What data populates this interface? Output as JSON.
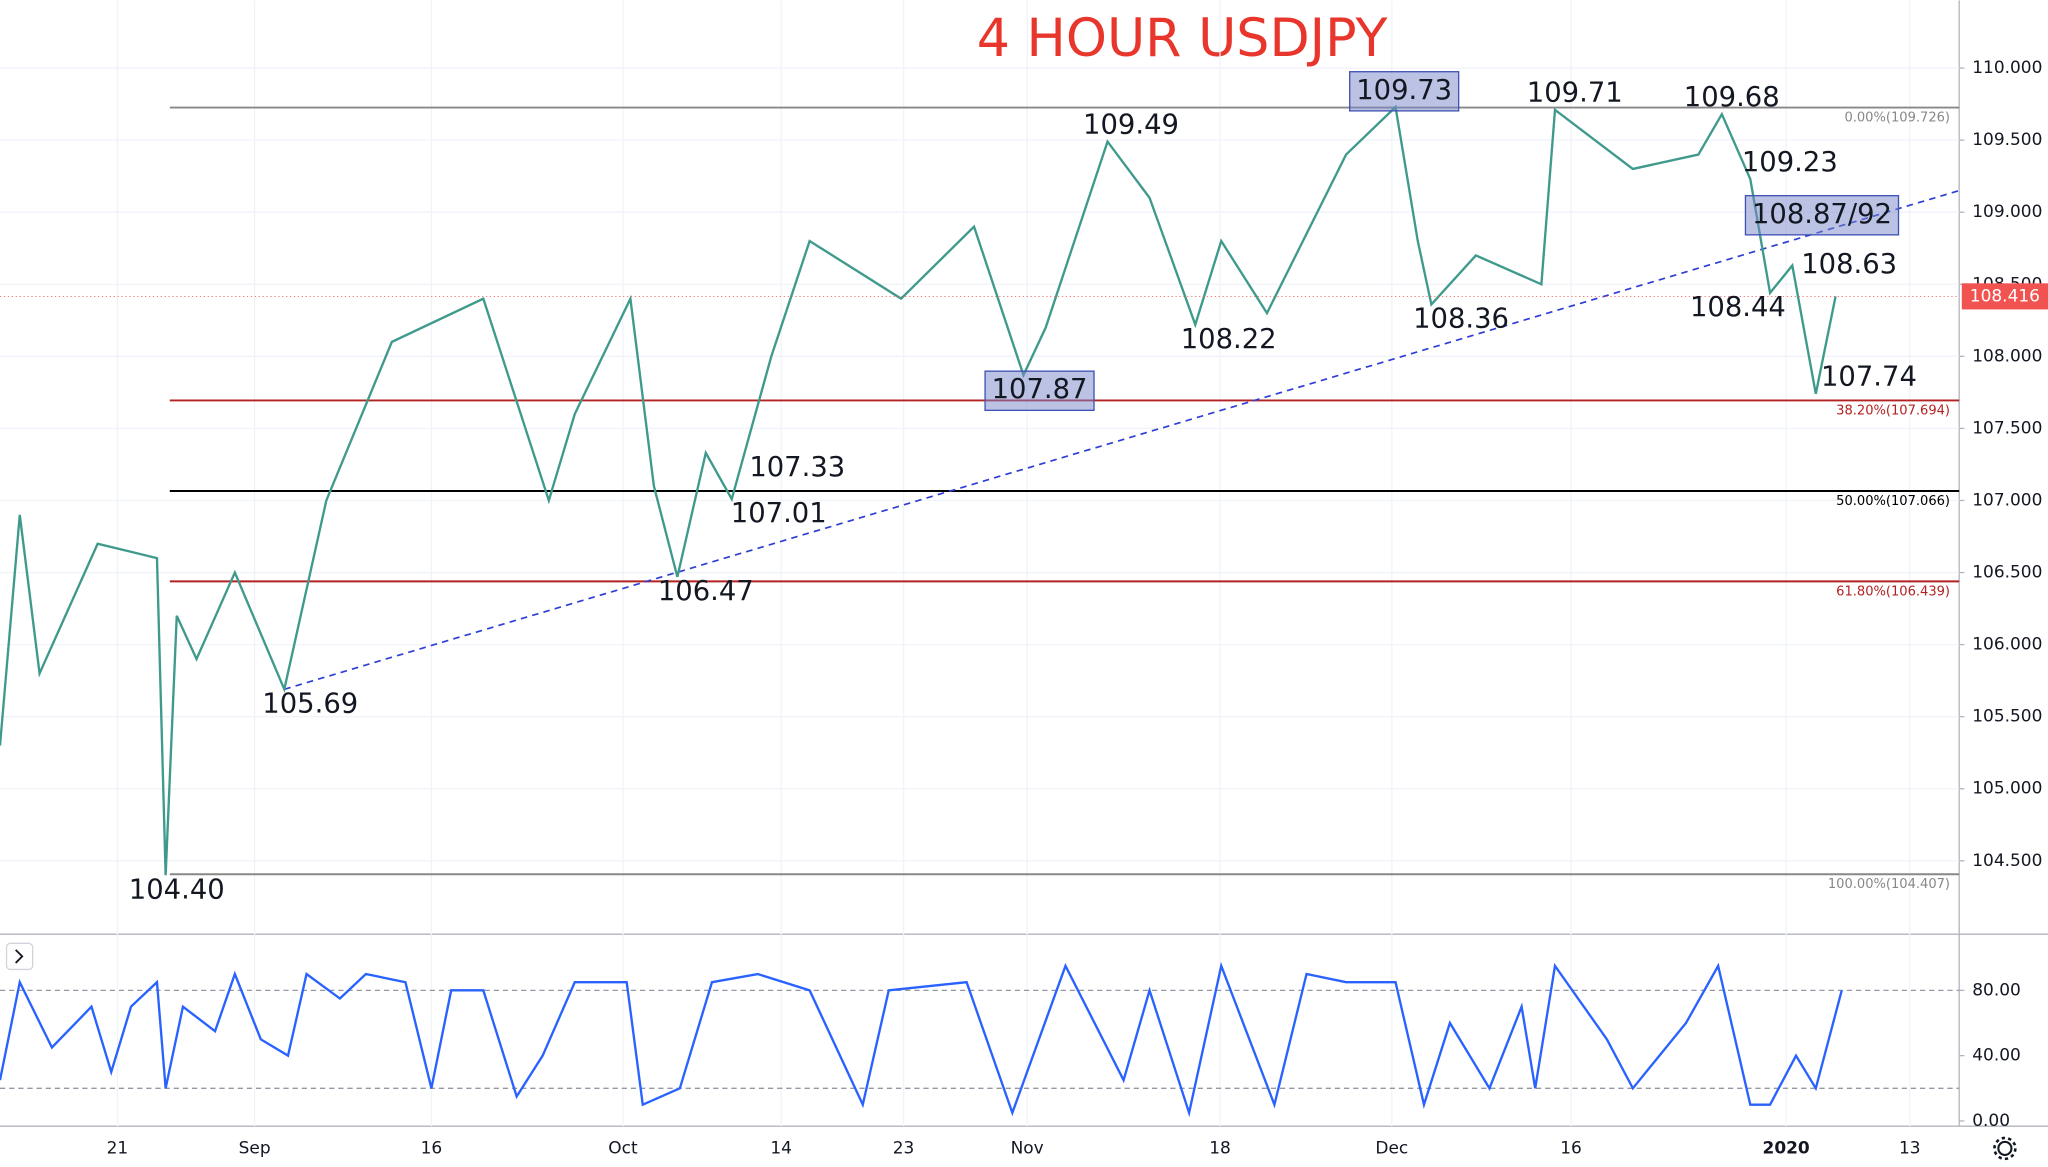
{
  "chart_data": [
    {
      "type": "line",
      "title": "4 HOUR USDJPY",
      "x": [
        11.5,
        13.1,
        14.7,
        19.4,
        24.2,
        24.9,
        25.8,
        27.4,
        30.5,
        34.5,
        37.9,
        43.2,
        50.6,
        55.9,
        58,
        62.5,
        64.4,
        66.3,
        68.6,
        70.7,
        73.9,
        77,
        84.4,
        90.3,
        94.3,
        96.1,
        101.1,
        104.5,
        108.2,
        110.3,
        114,
        120.4,
        124.4,
        126.2,
        127.3,
        130.9,
        136.2,
        137.3,
        143.6,
        148.9,
        150.8,
        153.1,
        154.7,
        156.5,
        158.4,
        160
      ],
      "series": [
        {
          "color": "#3f9a8c",
          "values": [
            105.3,
            106.9,
            105.8,
            106.7,
            106.6,
            104.4,
            106.2,
            105.9,
            106.5,
            105.69,
            107.0,
            108.1,
            108.4,
            107.0,
            107.6,
            108.4,
            107.1,
            106.47,
            107.33,
            107.01,
            108.0,
            108.8,
            108.4,
            108.9,
            107.87,
            108.2,
            109.49,
            109.1,
            108.22,
            108.8,
            108.3,
            109.4,
            109.73,
            108.8,
            108.36,
            108.7,
            108.5,
            109.71,
            109.3,
            109.4,
            109.68,
            109.23,
            108.44,
            108.63,
            107.74,
            108.416
          ]
        }
      ],
      "xlim": [
        11.5,
        170
      ],
      "ylim": [
        104.0,
        110.47
      ],
      "yticks": [
        {
          "value": 104.5,
          "label": "104.500"
        },
        {
          "value": 105,
          "label": "105.000"
        },
        {
          "value": 105.5,
          "label": "105.500"
        },
        {
          "value": 106,
          "label": "106.000"
        },
        {
          "value": 106.5,
          "label": "106.500"
        },
        {
          "value": 107,
          "label": "107.000"
        },
        {
          "value": 107.5,
          "label": "107.500"
        },
        {
          "value": 108,
          "label": "108.000"
        },
        {
          "value": 108.5,
          "label": "108.500"
        },
        {
          "value": 109,
          "label": "109.000"
        },
        {
          "value": 109.5,
          "label": "109.500"
        },
        {
          "value": 110,
          "label": "110.000"
        }
      ],
      "grid": true,
      "levels": [
        {
          "value": 109.726,
          "label": "0.00%(109.726)",
          "color": "#888888"
        },
        {
          "value": 107.694,
          "label": "38.20%(107.694)",
          "color": "#b22222"
        },
        {
          "value": 107.066,
          "label": "50.00%(107.066)",
          "color": "#000000"
        },
        {
          "value": 106.439,
          "label": "61.80%(106.439)",
          "color": "#b22222"
        },
        {
          "value": 104.407,
          "label": "100.00%(104.407)",
          "color": "#888888"
        }
      ],
      "trendline": {
        "x": [
          34.5,
          170
        ],
        "values": [
          105.69,
          109.15
        ],
        "color": "#2f3fd6"
      },
      "annotations": [
        {
          "label": "104.40",
          "value": 104.4,
          "x": 25.8,
          "anchor": "below",
          "boxed": false
        },
        {
          "label": "105.69",
          "value": 105.69,
          "x": 36.6,
          "anchor": "below",
          "boxed": false
        },
        {
          "label": "106.47",
          "value": 106.47,
          "x": 68.6,
          "anchor": "below",
          "boxed": false
        },
        {
          "label": "107.01",
          "value": 107.01,
          "x": 74.5,
          "anchor": "below",
          "boxed": false
        },
        {
          "label": "107.33",
          "value": 107.33,
          "x": 76,
          "anchor": "below",
          "boxed": false
        },
        {
          "label": "107.87",
          "value": 107.87,
          "x": 95.6,
          "anchor": "below",
          "boxed": true
        },
        {
          "label": "108.22",
          "value": 108.22,
          "x": 110.9,
          "anchor": "below",
          "boxed": false
        },
        {
          "label": "108.36",
          "value": 108.36,
          "x": 129.7,
          "anchor": "below",
          "boxed": false
        },
        {
          "label": "108.44",
          "value": 108.44,
          "x": 152.1,
          "anchor": "below",
          "boxed": false
        },
        {
          "label": "107.74",
          "value": 107.74,
          "x": 162.7,
          "anchor": "above",
          "boxed": false
        },
        {
          "label": "108.63",
          "value": 108.63,
          "x": 161.1,
          "anchor": "middle",
          "boxed": false
        },
        {
          "label": "109.23",
          "value": 109.23,
          "x": 156.3,
          "anchor": "above",
          "boxed": false
        },
        {
          "label": "108.87/92",
          "value": 108.87,
          "x": 158.9,
          "anchor": "above",
          "boxed": true
        },
        {
          "label": "109.49",
          "value": 109.49,
          "x": 103,
          "anchor": "above",
          "boxed": false
        },
        {
          "label": "109.73",
          "value": 109.73,
          "x": 125.1,
          "anchor": "above",
          "boxed": true
        },
        {
          "label": "109.71",
          "value": 109.71,
          "x": 138.9,
          "anchor": "above",
          "boxed": false
        },
        {
          "label": "109.68",
          "value": 109.68,
          "x": 151.6,
          "anchor": "above",
          "boxed": false
        }
      ],
      "last_price": 108.416,
      "last_price_color": "#f05350"
    },
    {
      "type": "line",
      "x": [
        11.5,
        13.1,
        15.7,
        18.9,
        20.5,
        22.1,
        24.2,
        24.9,
        26.3,
        28.9,
        30.5,
        32.6,
        34.8,
        36.3,
        39,
        41.1,
        44.3,
        46.4,
        48,
        50.6,
        53.3,
        55.4,
        58,
        62.2,
        63.5,
        66.5,
        69.1,
        72.8,
        77,
        81.3,
        83.4,
        89.7,
        93.4,
        97.7,
        102.4,
        104.5,
        107.7,
        110.3,
        114.6,
        117.2,
        120.4,
        124.4,
        126.7,
        128.8,
        132,
        134.6,
        135.7,
        137.3,
        141.5,
        143.6,
        147.9,
        150.5,
        153.1,
        154.7,
        156.8,
        158.4,
        160.5
      ],
      "series": [
        {
          "color": "#2962ff",
          "values": [
            25,
            85,
            45,
            70,
            30,
            70,
            85,
            20,
            70,
            55,
            90,
            50,
            40,
            90,
            75,
            90,
            85,
            20,
            80,
            80,
            15,
            40,
            85,
            85,
            10,
            20,
            85,
            90,
            80,
            10,
            80,
            85,
            5,
            95,
            25,
            80,
            5,
            95,
            10,
            90,
            85,
            85,
            10,
            60,
            20,
            70,
            20,
            95,
            50,
            20,
            60,
            95,
            10,
            10,
            40,
            20,
            80
          ]
        }
      ],
      "xlim": [
        11.5,
        170
      ],
      "ylim": [
        -3.2,
        113.6
      ],
      "yticks": [
        {
          "value": 0,
          "label": "0.00"
        },
        {
          "value": 40,
          "label": "40.00"
        },
        {
          "value": 80,
          "label": "80.00"
        }
      ],
      "bands": [
        20,
        80
      ],
      "xticks": [
        21,
        {
          "value": 32.1,
          "label": "Sep"
        },
        {
          "value": 46.4,
          "label": "16"
        },
        {
          "value": 61.9,
          "label": "Oct"
        },
        {
          "value": 74.7,
          "label": "14"
        },
        {
          "value": 84.6,
          "label": "23"
        },
        {
          "value": 94.6,
          "label": "Nov"
        },
        {
          "value": 110.2,
          "label": "18"
        },
        {
          "value": 124.1,
          "label": "Dec"
        },
        {
          "value": 138.6,
          "label": "16"
        },
        {
          "value": 156,
          "label": "2020"
        },
        {
          "value": 166,
          "label": "13"
        }
      ]
    }
  ]
}
